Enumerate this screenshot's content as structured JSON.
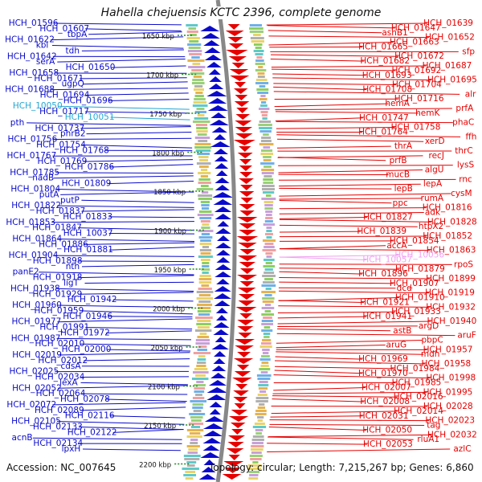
{
  "title": "Hahella chejuensis KCTC 2396, complete genome",
  "footer": {
    "accession": "Accession: NC_007645",
    "summary": "Topology: circular; Length: 7,215,267 bp; Genes: 6,860"
  },
  "colors": {
    "forward_strand": "#0a0acc",
    "reverse_strand": "#e60000",
    "rna_label": "#22a6d4",
    "pseudo_label": "#f0a0f0",
    "backbone": "#888888",
    "tick_green": "#1a8a1a"
  },
  "kbp_ticks": [
    "1650 kbp",
    "1700 kbp",
    "1750 kbp",
    "1800 kbp",
    "1850 kbp",
    "1900 kbp",
    "1950 kbp",
    "2000 kbp",
    "2050 kbp",
    "2100 kbp",
    "2150 kbp",
    "2200 kbp"
  ],
  "left_labels": [
    {
      "text": "HCH_01596",
      "kind": "gene"
    },
    {
      "text": "HCH_01607",
      "kind": "gene"
    },
    {
      "text": "tbpA",
      "kind": "gene"
    },
    {
      "text": "HCH_01622",
      "kind": "gene"
    },
    {
      "text": "kbl",
      "kind": "gene"
    },
    {
      "text": "tdh",
      "kind": "gene"
    },
    {
      "text": "HCH_01642",
      "kind": "gene"
    },
    {
      "text": "serA",
      "kind": "gene"
    },
    {
      "text": "HCH_01650",
      "kind": "gene"
    },
    {
      "text": "HCH_01658",
      "kind": "gene"
    },
    {
      "text": "HCH_01671",
      "kind": "gene"
    },
    {
      "text": "ugpQ",
      "kind": "gene"
    },
    {
      "text": "HCH_01688",
      "kind": "gene"
    },
    {
      "text": "HCH_01694",
      "kind": "gene"
    },
    {
      "text": "HCH_01696",
      "kind": "gene"
    },
    {
      "text": "HCH_10050",
      "kind": "rna"
    },
    {
      "text": "HCH_01717",
      "kind": "gene"
    },
    {
      "text": "HCH_10051",
      "kind": "rna"
    },
    {
      "text": "pth",
      "kind": "gene"
    },
    {
      "text": "HCH_01737",
      "kind": "gene"
    },
    {
      "text": "phrB2",
      "kind": "gene"
    },
    {
      "text": "HCH_01756",
      "kind": "gene"
    },
    {
      "text": "HCH_01754",
      "kind": "gene"
    },
    {
      "text": "HCH_01768",
      "kind": "gene"
    },
    {
      "text": "HCH_01767",
      "kind": "gene"
    },
    {
      "text": "HCH_01769",
      "kind": "gene"
    },
    {
      "text": "HCH_01786",
      "kind": "gene"
    },
    {
      "text": "HCH_01785",
      "kind": "gene"
    },
    {
      "text": "nadB",
      "kind": "gene"
    },
    {
      "text": "HCH_01809",
      "kind": "gene"
    },
    {
      "text": "HCH_01804",
      "kind": "gene"
    },
    {
      "text": "putA",
      "kind": "gene"
    },
    {
      "text": "putP",
      "kind": "gene"
    },
    {
      "text": "HCH_01822",
      "kind": "gene"
    },
    {
      "text": "HCH_01837",
      "kind": "gene"
    },
    {
      "text": "HCH_01833",
      "kind": "gene"
    },
    {
      "text": "HCH_01853",
      "kind": "gene"
    },
    {
      "text": "HCH_01847",
      "kind": "gene"
    },
    {
      "text": "HCH_10037",
      "kind": "gene"
    },
    {
      "text": "HCH_01864",
      "kind": "gene"
    },
    {
      "text": "HCH_01886",
      "kind": "gene"
    },
    {
      "text": "HCH_01881",
      "kind": "gene"
    },
    {
      "text": "HCH_01904",
      "kind": "gene"
    },
    {
      "text": "HCH_01898",
      "kind": "gene"
    },
    {
      "text": "nth",
      "kind": "gene"
    },
    {
      "text": "panE2",
      "kind": "gene"
    },
    {
      "text": "HCH_01918",
      "kind": "gene"
    },
    {
      "text": "ligT",
      "kind": "gene"
    },
    {
      "text": "HCH_01938",
      "kind": "gene"
    },
    {
      "text": "HCH_01929",
      "kind": "gene"
    },
    {
      "text": "HCH_01942",
      "kind": "gene"
    },
    {
      "text": "HCH_01960",
      "kind": "gene"
    },
    {
      "text": "HCH_01959",
      "kind": "gene"
    },
    {
      "text": "HCH_01946",
      "kind": "gene"
    },
    {
      "text": "HCH_01977",
      "kind": "gene"
    },
    {
      "text": "HCH_01991",
      "kind": "gene"
    },
    {
      "text": "HCH_01972",
      "kind": "gene"
    },
    {
      "text": "HCH_01987",
      "kind": "gene"
    },
    {
      "text": "HCH_02010",
      "kind": "gene"
    },
    {
      "text": "HCH_02000",
      "kind": "gene"
    },
    {
      "text": "HCH_02019",
      "kind": "gene"
    },
    {
      "text": "HCH_02012",
      "kind": "gene"
    },
    {
      "text": "cdsA",
      "kind": "gene"
    },
    {
      "text": "HCH_02025",
      "kind": "gene"
    },
    {
      "text": "HCH_02034",
      "kind": "gene"
    },
    {
      "text": "lexA",
      "kind": "gene"
    },
    {
      "text": "HCH_02052",
      "kind": "gene"
    },
    {
      "text": "HCH_02064",
      "kind": "gene"
    },
    {
      "text": "HCH_02078",
      "kind": "gene"
    },
    {
      "text": "HCH_02072",
      "kind": "gene"
    },
    {
      "text": "HCH_02089",
      "kind": "gene"
    },
    {
      "text": "HCH_02116",
      "kind": "gene"
    },
    {
      "text": "HCH_02105",
      "kind": "gene"
    },
    {
      "text": "HCH_02133",
      "kind": "gene"
    },
    {
      "text": "HCH_02122",
      "kind": "gene"
    },
    {
      "text": "acnB",
      "kind": "gene"
    },
    {
      "text": "HCH_02134",
      "kind": "gene"
    },
    {
      "text": "lpxH",
      "kind": "gene"
    }
  ],
  "right_labels": [
    {
      "text": "HCH_01639",
      "kind": "gene"
    },
    {
      "text": "HCH_01647",
      "kind": "gene"
    },
    {
      "text": "asnB1",
      "kind": "gene"
    },
    {
      "text": "HCH_01652",
      "kind": "gene"
    },
    {
      "text": "HCH_01663",
      "kind": "gene"
    },
    {
      "text": "HCH_01665",
      "kind": "gene"
    },
    {
      "text": "sfp",
      "kind": "gene"
    },
    {
      "text": "HCH_01672",
      "kind": "gene"
    },
    {
      "text": "HCH_01682",
      "kind": "gene"
    },
    {
      "text": "HCH_01687",
      "kind": "gene"
    },
    {
      "text": "HCH_01692",
      "kind": "gene"
    },
    {
      "text": "HCH_01693",
      "kind": "gene"
    },
    {
      "text": "HCH_01695",
      "kind": "gene"
    },
    {
      "text": "HCH_01704",
      "kind": "gene"
    },
    {
      "text": "HCH_01708",
      "kind": "gene"
    },
    {
      "text": "alr",
      "kind": "gene"
    },
    {
      "text": "HCH_01716",
      "kind": "gene"
    },
    {
      "text": "hemA",
      "kind": "gene"
    },
    {
      "text": "prfA",
      "kind": "gene"
    },
    {
      "text": "hemK",
      "kind": "gene"
    },
    {
      "text": "HCH_01747",
      "kind": "gene"
    },
    {
      "text": "phaC",
      "kind": "gene"
    },
    {
      "text": "HCH_01758",
      "kind": "gene"
    },
    {
      "text": "HCH_01764",
      "kind": "gene"
    },
    {
      "text": "ffh",
      "kind": "gene"
    },
    {
      "text": "xerD",
      "kind": "gene"
    },
    {
      "text": "thrA",
      "kind": "gene"
    },
    {
      "text": "thrC",
      "kind": "gene"
    },
    {
      "text": "recJ",
      "kind": "gene"
    },
    {
      "text": "prfB",
      "kind": "gene"
    },
    {
      "text": "lysS",
      "kind": "gene"
    },
    {
      "text": "algU",
      "kind": "gene"
    },
    {
      "text": "mucB",
      "kind": "gene"
    },
    {
      "text": "rnc",
      "kind": "gene"
    },
    {
      "text": "lepA",
      "kind": "gene"
    },
    {
      "text": "lepB",
      "kind": "gene"
    },
    {
      "text": "cysM",
      "kind": "gene"
    },
    {
      "text": "rumA",
      "kind": "gene"
    },
    {
      "text": "ppc",
      "kind": "gene"
    },
    {
      "text": "HCH_01816",
      "kind": "gene"
    },
    {
      "text": "adk",
      "kind": "gene"
    },
    {
      "text": "HCH_01827",
      "kind": "gene"
    },
    {
      "text": "HCH_01828",
      "kind": "gene"
    },
    {
      "text": "htpX2",
      "kind": "gene"
    },
    {
      "text": "HCH_01839",
      "kind": "gene"
    },
    {
      "text": "HCH_01852",
      "kind": "gene"
    },
    {
      "text": "HCH_01854",
      "kind": "gene"
    },
    {
      "text": "accA",
      "kind": "gene"
    },
    {
      "text": "HCH_01863",
      "kind": "gene"
    },
    {
      "text": "HCH_10056",
      "kind": "pseudo"
    },
    {
      "text": "HCH_10057",
      "kind": "pseudo"
    },
    {
      "text": "rpoS",
      "kind": "gene"
    },
    {
      "text": "HCH_01879",
      "kind": "gene"
    },
    {
      "text": "HCH_01896",
      "kind": "gene"
    },
    {
      "text": "HCH_01899",
      "kind": "gene"
    },
    {
      "text": "HCH_01907",
      "kind": "gene"
    },
    {
      "text": "dcd",
      "kind": "gene"
    },
    {
      "text": "HCH_01919",
      "kind": "gene"
    },
    {
      "text": "HCH_01910",
      "kind": "gene"
    },
    {
      "text": "HCH_01921",
      "kind": "gene"
    },
    {
      "text": "HCH_01932",
      "kind": "gene"
    },
    {
      "text": "HCH_01933",
      "kind": "gene"
    },
    {
      "text": "HCH_01941",
      "kind": "gene"
    },
    {
      "text": "HCH_01940",
      "kind": "gene"
    },
    {
      "text": "argD",
      "kind": "gene"
    },
    {
      "text": "astB",
      "kind": "gene"
    },
    {
      "text": "aruF",
      "kind": "gene"
    },
    {
      "text": "pbpC",
      "kind": "gene"
    },
    {
      "text": "aruG",
      "kind": "gene"
    },
    {
      "text": "HCH_01957",
      "kind": "gene"
    },
    {
      "text": "mdh",
      "kind": "gene"
    },
    {
      "text": "HCH_01969",
      "kind": "gene"
    },
    {
      "text": "HCH_01958",
      "kind": "gene"
    },
    {
      "text": "HCH_01984",
      "kind": "gene"
    },
    {
      "text": "HCH_01970",
      "kind": "gene"
    },
    {
      "text": "HCH_01998",
      "kind": "gene"
    },
    {
      "text": "HCH_01985",
      "kind": "gene"
    },
    {
      "text": "HCH_02007",
      "kind": "gene"
    },
    {
      "text": "HCH_01995",
      "kind": "gene"
    },
    {
      "text": "HCH_02016",
      "kind": "gene"
    },
    {
      "text": "HCH_02008",
      "kind": "gene"
    },
    {
      "text": "HCH_02028",
      "kind": "gene"
    },
    {
      "text": "HCH_02014",
      "kind": "gene"
    },
    {
      "text": "HCH_02031",
      "kind": "gene"
    },
    {
      "text": "HCH_02023",
      "kind": "gene"
    },
    {
      "text": "tag",
      "kind": "gene"
    },
    {
      "text": "HCH_02050",
      "kind": "gene"
    },
    {
      "text": "HCH_02032",
      "kind": "gene"
    },
    {
      "text": "rluA1",
      "kind": "gene"
    },
    {
      "text": "HCH_02053",
      "kind": "gene"
    },
    {
      "text": "azlC",
      "kind": "gene"
    }
  ]
}
